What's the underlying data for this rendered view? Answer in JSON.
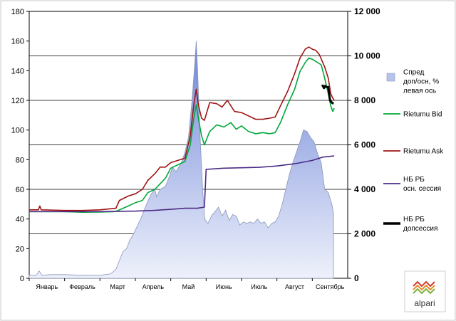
{
  "chart_data": {
    "type": "line",
    "title": "",
    "xlabel": "",
    "ylabel": "",
    "categories": [
      "Январь",
      "Февраль",
      "Март",
      "Апрель",
      "Май",
      "Июнь",
      "Июль",
      "Август",
      "Сентябрь"
    ],
    "y_left_range": [
      0,
      180
    ],
    "y_left_ticks": [
      "0",
      "20",
      "40",
      "60",
      "80",
      "100",
      "120",
      "140",
      "160",
      "180"
    ],
    "y_right_range": [
      0,
      12000
    ],
    "y_right_ticks": [
      "0",
      "2 000",
      "4 000",
      "6 000",
      "8 000",
      "10 000",
      "12 000"
    ],
    "x_range": [
      0,
      9
    ],
    "grid": "horizontal (right axis)",
    "legend_position": "right",
    "series": [
      {
        "name": "Спред доп/осн, % левая ось",
        "name_lines": [
          "Спред",
          "доп/осн, %",
          "левая ось"
        ],
        "type": "area",
        "axis": "left",
        "color": "#aab8e8",
        "points": [
          [
            0,
            2
          ],
          [
            0.2,
            2
          ],
          [
            0.28,
            5
          ],
          [
            0.36,
            2
          ],
          [
            0.6,
            2.5
          ],
          [
            1,
            2.5
          ],
          [
            1.5,
            2
          ],
          [
            2,
            2
          ],
          [
            2.3,
            3
          ],
          [
            2.45,
            6
          ],
          [
            2.55,
            12
          ],
          [
            2.65,
            18
          ],
          [
            2.75,
            20
          ],
          [
            2.85,
            26
          ],
          [
            2.95,
            30
          ],
          [
            3.05,
            35
          ],
          [
            3.15,
            40
          ],
          [
            3.25,
            46
          ],
          [
            3.35,
            52
          ],
          [
            3.45,
            57
          ],
          [
            3.55,
            60
          ],
          [
            3.6,
            55
          ],
          [
            3.7,
            60
          ],
          [
            3.85,
            62
          ],
          [
            3.95,
            68
          ],
          [
            4.05,
            75
          ],
          [
            4.15,
            72
          ],
          [
            4.3,
            78
          ],
          [
            4.4,
            85
          ],
          [
            4.5,
            95
          ],
          [
            4.6,
            120
          ],
          [
            4.68,
            145
          ],
          [
            4.72,
            160
          ],
          [
            4.76,
            140
          ],
          [
            4.82,
            100
          ],
          [
            4.9,
            60
          ],
          [
            4.96,
            40
          ],
          [
            5.05,
            37
          ],
          [
            5.15,
            42
          ],
          [
            5.25,
            45
          ],
          [
            5.35,
            48
          ],
          [
            5.45,
            42
          ],
          [
            5.55,
            46
          ],
          [
            5.65,
            39
          ],
          [
            5.75,
            43
          ],
          [
            5.85,
            42
          ],
          [
            5.95,
            36
          ],
          [
            6.05,
            38
          ],
          [
            6.15,
            37
          ],
          [
            6.25,
            38
          ],
          [
            6.35,
            37
          ],
          [
            6.45,
            40
          ],
          [
            6.55,
            37
          ],
          [
            6.65,
            38
          ],
          [
            6.75,
            34
          ],
          [
            6.85,
            37
          ],
          [
            6.95,
            38
          ],
          [
            7.05,
            42
          ],
          [
            7.15,
            50
          ],
          [
            7.25,
            60
          ],
          [
            7.35,
            70
          ],
          [
            7.45,
            78
          ],
          [
            7.55,
            85
          ],
          [
            7.65,
            92
          ],
          [
            7.75,
            100
          ],
          [
            7.85,
            99
          ],
          [
            7.95,
            95
          ],
          [
            8.05,
            92
          ],
          [
            8.15,
            84
          ],
          [
            8.25,
            78
          ],
          [
            8.35,
            60
          ],
          [
            8.45,
            58
          ],
          [
            8.55,
            50
          ],
          [
            8.6,
            44
          ]
        ]
      },
      {
        "name": "Rietumu Bid",
        "type": "line",
        "axis": "right",
        "color": "#00a83b",
        "points": [
          [
            0,
            3000
          ],
          [
            0.5,
            3000
          ],
          [
            1,
            3000
          ],
          [
            1.5,
            2970
          ],
          [
            2,
            2980
          ],
          [
            2.4,
            3000
          ],
          [
            2.5,
            3040
          ],
          [
            2.8,
            3250
          ],
          [
            3.0,
            3400
          ],
          [
            3.2,
            3500
          ],
          [
            3.35,
            3850
          ],
          [
            3.55,
            4000
          ],
          [
            3.7,
            4250
          ],
          [
            3.85,
            4500
          ],
          [
            4.0,
            4950
          ],
          [
            4.2,
            5100
          ],
          [
            4.4,
            5250
          ],
          [
            4.55,
            6000
          ],
          [
            4.65,
            7200
          ],
          [
            4.72,
            7800
          ],
          [
            4.78,
            7200
          ],
          [
            4.87,
            6400
          ],
          [
            4.95,
            6000
          ],
          [
            5.1,
            6600
          ],
          [
            5.3,
            6900
          ],
          [
            5.5,
            6800
          ],
          [
            5.7,
            7000
          ],
          [
            5.85,
            6700
          ],
          [
            6.0,
            6850
          ],
          [
            6.2,
            6600
          ],
          [
            6.4,
            6500
          ],
          [
            6.6,
            6550
          ],
          [
            6.8,
            6500
          ],
          [
            6.95,
            6550
          ],
          [
            7.1,
            7000
          ],
          [
            7.3,
            7800
          ],
          [
            7.5,
            8500
          ],
          [
            7.65,
            9300
          ],
          [
            7.8,
            9700
          ],
          [
            7.9,
            9900
          ],
          [
            8.0,
            9850
          ],
          [
            8.1,
            9750
          ],
          [
            8.25,
            9600
          ],
          [
            8.35,
            9000
          ],
          [
            8.45,
            8300
          ],
          [
            8.52,
            7750
          ],
          [
            8.58,
            7500
          ],
          [
            8.62,
            7650
          ]
        ]
      },
      {
        "name": "Rietumu Ask",
        "type": "line",
        "axis": "right",
        "color": "#a01414",
        "points": [
          [
            0,
            3080
          ],
          [
            0.26,
            3080
          ],
          [
            0.3,
            3250
          ],
          [
            0.34,
            3080
          ],
          [
            1,
            3050
          ],
          [
            1.5,
            3050
          ],
          [
            2,
            3080
          ],
          [
            2.45,
            3150
          ],
          [
            2.55,
            3500
          ],
          [
            2.8,
            3700
          ],
          [
            3.0,
            3800
          ],
          [
            3.2,
            4000
          ],
          [
            3.35,
            4400
          ],
          [
            3.55,
            4700
          ],
          [
            3.7,
            5000
          ],
          [
            3.85,
            5000
          ],
          [
            4.0,
            5200
          ],
          [
            4.2,
            5300
          ],
          [
            4.4,
            5400
          ],
          [
            4.55,
            6400
          ],
          [
            4.65,
            7800
          ],
          [
            4.72,
            8500
          ],
          [
            4.78,
            7800
          ],
          [
            4.87,
            7200
          ],
          [
            4.95,
            7100
          ],
          [
            5.1,
            7900
          ],
          [
            5.3,
            7850
          ],
          [
            5.45,
            7700
          ],
          [
            5.6,
            8000
          ],
          [
            5.8,
            7500
          ],
          [
            6.0,
            7450
          ],
          [
            6.2,
            7300
          ],
          [
            6.4,
            7150
          ],
          [
            6.6,
            7150
          ],
          [
            6.8,
            7200
          ],
          [
            6.95,
            7250
          ],
          [
            7.1,
            7750
          ],
          [
            7.3,
            8400
          ],
          [
            7.5,
            9200
          ],
          [
            7.65,
            9900
          ],
          [
            7.8,
            10300
          ],
          [
            7.9,
            10400
          ],
          [
            8.0,
            10300
          ],
          [
            8.1,
            10250
          ],
          [
            8.2,
            10050
          ],
          [
            8.35,
            9500
          ],
          [
            8.45,
            9000
          ],
          [
            8.52,
            8300
          ],
          [
            8.58,
            8100
          ],
          [
            8.62,
            8000
          ]
        ]
      },
      {
        "name": "НБ РБ осн. сессия",
        "name_lines": [
          "НБ РБ",
          "осн. сессия"
        ],
        "type": "line",
        "axis": "right",
        "color": "#4b2b86",
        "points": [
          [
            0,
            3000
          ],
          [
            1,
            3000
          ],
          [
            2,
            3000
          ],
          [
            3,
            3020
          ],
          [
            3.5,
            3050
          ],
          [
            4.0,
            3100
          ],
          [
            4.4,
            3150
          ],
          [
            4.75,
            3150
          ],
          [
            4.95,
            3200
          ],
          [
            5.0,
            4900
          ],
          [
            5.5,
            4950
          ],
          [
            6.0,
            4970
          ],
          [
            6.5,
            4990
          ],
          [
            7.0,
            5050
          ],
          [
            7.5,
            5150
          ],
          [
            8.0,
            5300
          ],
          [
            8.3,
            5450
          ],
          [
            8.62,
            5500
          ]
        ]
      },
      {
        "name": "НБ РБ допсессия",
        "name_lines": [
          "НБ РБ",
          "допсессия"
        ],
        "type": "line",
        "axis": "right",
        "color": "#000000",
        "points": [
          [
            8.28,
            8700
          ],
          [
            8.33,
            8550
          ],
          [
            8.36,
            8650
          ],
          [
            8.4,
            8600
          ],
          [
            8.45,
            8600
          ],
          [
            8.5,
            8000
          ],
          [
            8.55,
            7900
          ],
          [
            8.6,
            7850
          ]
        ]
      }
    ]
  },
  "logo": {
    "text": "alpari"
  }
}
